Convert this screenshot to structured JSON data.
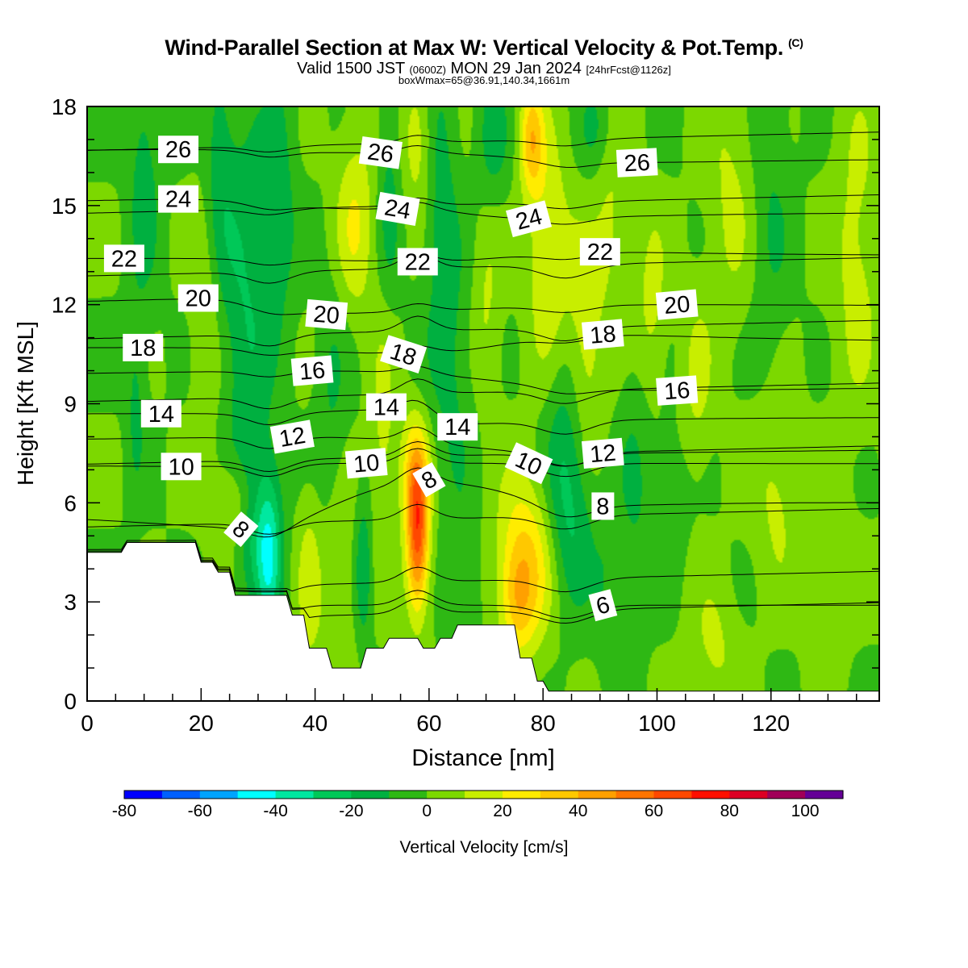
{
  "header": {
    "title": "Wind-Parallel Section at Max W: Vertical Velocity & Pot.Temp.",
    "title_mark": "(C)",
    "valid_prefix": "Valid 1500 JST",
    "valid_utc": "(0600Z)",
    "valid_date": "MON 29 Jan 2024",
    "forecast_info": "[24hrFcst@1126z]",
    "box_info": "boxWmax=65@36.91,140.34,1661m"
  },
  "chart_data": {
    "type": "heatmap",
    "xlabel": "Distance [nm]",
    "ylabel": "Height [Kft MSL]",
    "xlim": [
      0,
      139
    ],
    "ylim": [
      0,
      18
    ],
    "x_ticks": [
      "0",
      "20",
      "40",
      "60",
      "80",
      "100",
      "120"
    ],
    "y_ticks": [
      "0",
      "3",
      "6",
      "9",
      "12",
      "15",
      "18"
    ],
    "colorbar": {
      "label": "Vertical Velocity [cm/s]",
      "ticks": [
        "-80",
        "-60",
        "-40",
        "-20",
        "0",
        "20",
        "40",
        "60",
        "80",
        "100"
      ],
      "levels": [
        -80,
        -70,
        -60,
        -50,
        -40,
        -30,
        -20,
        -10,
        0,
        10,
        20,
        30,
        40,
        50,
        60,
        70,
        80,
        90,
        100
      ],
      "colors": [
        "#0000ff",
        "#0060ff",
        "#00a4ff",
        "#00ffff",
        "#00e8a0",
        "#00c858",
        "#00b040",
        "#2eb814",
        "#7cd800",
        "#c8ee00",
        "#ffec00",
        "#ffc800",
        "#ffa000",
        "#ff7400",
        "#ff4800",
        "#ff1000",
        "#dc0024",
        "#a00058",
        "#640096"
      ]
    },
    "vertical_velocity_cm_s": {
      "background": 0,
      "max_updraft": 65,
      "max_updraft_location": [
        58,
        5
      ],
      "features": [
        {
          "x": 58,
          "z": 5,
          "sx": 1.4,
          "sz": 1.6,
          "w": 63
        },
        {
          "x": 57.5,
          "z": 7,
          "sx": 1.8,
          "sz": 1.2,
          "w": 25
        },
        {
          "x": 77,
          "z": 4.2,
          "sx": 3.5,
          "sz": 1.8,
          "w": 32
        },
        {
          "x": 75.5,
          "z": 3.0,
          "sx": 2.0,
          "sz": 1.1,
          "w": 20
        },
        {
          "x": 26,
          "z": 6.0,
          "sx": 3.0,
          "sz": 0.9,
          "w": 18
        },
        {
          "x": 39,
          "z": 3.5,
          "sx": 1.5,
          "sz": 2.0,
          "w": 15
        },
        {
          "x": 44,
          "z": 3.5,
          "sx": 2.0,
          "sz": 2.5,
          "w": 12
        },
        {
          "x": 32,
          "z": 4.5,
          "sx": 1.6,
          "sz": 1.8,
          "w": -38
        },
        {
          "x": 29,
          "z": 5.5,
          "sx": 2.0,
          "sz": 1.5,
          "w": -18
        },
        {
          "x": 48.5,
          "z": 4.0,
          "sx": 1.0,
          "sz": 1.5,
          "w": -20
        },
        {
          "x": 85,
          "z": 5.5,
          "sx": 3.0,
          "sz": 2.0,
          "w": -18
        },
        {
          "x": 91,
          "z": 3.5,
          "sx": 1.5,
          "sz": 1.5,
          "w": -8
        },
        {
          "x": 84,
          "z": 8.5,
          "sx": 2.5,
          "sz": 2.5,
          "w": -16
        },
        {
          "x": 102,
          "z": 6.5,
          "sx": 2.5,
          "sz": 1.5,
          "w": -8
        },
        {
          "x": 64,
          "z": 10,
          "sx": 3.0,
          "sz": 3.0,
          "w": -12
        },
        {
          "x": 52,
          "z": 8,
          "sx": 1.6,
          "sz": 2.5,
          "w": 14
        },
        {
          "x": 47,
          "z": 14.5,
          "sx": 2.5,
          "sz": 2.0,
          "w": 20
        },
        {
          "x": 58,
          "z": 17,
          "sx": 2.0,
          "sz": 1.5,
          "w": 17
        },
        {
          "x": 78,
          "z": 17,
          "sx": 1.5,
          "sz": 1.2,
          "w": 35
        },
        {
          "x": 81,
          "z": 13.5,
          "sx": 2.5,
          "sz": 2.5,
          "w": 22
        },
        {
          "x": 87,
          "z": 10.5,
          "sx": 2.5,
          "sz": 2.5,
          "w": 20
        },
        {
          "x": 99,
          "z": 12,
          "sx": 2.0,
          "sz": 2.0,
          "w": 14
        },
        {
          "x": 21,
          "z": 12,
          "sx": 2.0,
          "sz": 3.0,
          "w": 12
        },
        {
          "x": 70,
          "z": 12,
          "sx": 2.0,
          "sz": 2.5,
          "w": 12
        },
        {
          "x": 92,
          "z": 14.5,
          "sx": 2.0,
          "sz": 2.0,
          "w": 12
        },
        {
          "x": 121,
          "z": 6.5,
          "sx": 3.0,
          "sz": 2.0,
          "w": 14
        },
        {
          "x": 135,
          "z": 13.5,
          "sx": 3.0,
          "sz": 3.5,
          "w": 14
        },
        {
          "x": 107,
          "z": 9.5,
          "sx": 2.0,
          "sz": 2.0,
          "w": 12
        },
        {
          "x": 113,
          "z": 15.5,
          "sx": 3.0,
          "sz": 3.0,
          "w": 12
        },
        {
          "x": 130,
          "z": 3.5,
          "sx": 2.5,
          "sz": 2.0,
          "w": 12
        },
        {
          "x": 110,
          "z": 1.5,
          "sx": 3.0,
          "sz": 1.5,
          "w": 12
        },
        {
          "x": 23,
          "z": 16,
          "sx": 2.0,
          "sz": 3.0,
          "w": -16
        },
        {
          "x": 10,
          "z": 16,
          "sx": 2.0,
          "sz": 3.0,
          "w": -15
        },
        {
          "x": 8.5,
          "z": 9,
          "sx": 1.2,
          "sz": 2.0,
          "w": -12
        },
        {
          "x": 28,
          "z": 12,
          "sx": 3.0,
          "sz": 4.0,
          "w": -20
        },
        {
          "x": 34,
          "z": 15,
          "sx": 2.0,
          "sz": 3.0,
          "w": -14
        },
        {
          "x": 43,
          "z": 9,
          "sx": 2.0,
          "sz": 3.0,
          "w": -11
        },
        {
          "x": 53,
          "z": 15.5,
          "sx": 1.5,
          "sz": 2.5,
          "w": -14
        },
        {
          "x": 62,
          "z": 15.5,
          "sx": 2.0,
          "sz": 3.0,
          "w": -14
        },
        {
          "x": 71,
          "z": 17,
          "sx": 2.0,
          "sz": 1.5,
          "w": -16
        },
        {
          "x": 89,
          "z": 17.3,
          "sx": 2.0,
          "sz": 1.0,
          "w": -11
        },
        {
          "x": 66,
          "z": 3.5,
          "sx": 2.0,
          "sz": 1.5,
          "w": -12
        },
        {
          "x": 120,
          "z": 15,
          "sx": 2.5,
          "sz": 4.0,
          "w": -10
        },
        {
          "x": 96,
          "z": 6.5,
          "sx": 2.0,
          "sz": 3.0,
          "w": -10
        }
      ]
    },
    "potential_temperature": {
      "contour_interval": 1,
      "labels": [
        {
          "text": "26",
          "x": 16,
          "z": 16.7,
          "rot": 0
        },
        {
          "text": "26",
          "x": 51.5,
          "z": 16.6,
          "rot": 8
        },
        {
          "text": "26",
          "x": 96.5,
          "z": 16.3,
          "rot": -3
        },
        {
          "text": "24",
          "x": 16,
          "z": 15.2,
          "rot": 0
        },
        {
          "text": "24",
          "x": 54.5,
          "z": 14.9,
          "rot": 10
        },
        {
          "text": "24",
          "x": 77.5,
          "z": 14.6,
          "rot": -15
        },
        {
          "text": "22",
          "x": 6.5,
          "z": 13.4,
          "rot": 0
        },
        {
          "text": "22",
          "x": 58,
          "z": 13.3,
          "rot": 0
        },
        {
          "text": "22",
          "x": 90,
          "z": 13.6,
          "rot": 0
        },
        {
          "text": "20",
          "x": 19.5,
          "z": 12.2,
          "rot": 0
        },
        {
          "text": "20",
          "x": 42,
          "z": 11.7,
          "rot": 5
        },
        {
          "text": "20",
          "x": 103.5,
          "z": 12.0,
          "rot": -5
        },
        {
          "text": "18",
          "x": 9.8,
          "z": 10.7,
          "rot": 0
        },
        {
          "text": "18",
          "x": 55.5,
          "z": 10.5,
          "rot": 18
        },
        {
          "text": "18",
          "x": 90.5,
          "z": 11.1,
          "rot": -5
        },
        {
          "text": "16",
          "x": 39.5,
          "z": 10.0,
          "rot": -5
        },
        {
          "text": "16",
          "x": 103.5,
          "z": 9.4,
          "rot": -4
        },
        {
          "text": "14",
          "x": 13,
          "z": 8.7,
          "rot": 0
        },
        {
          "text": "14",
          "x": 52.5,
          "z": 8.9,
          "rot": 0
        },
        {
          "text": "14",
          "x": 65,
          "z": 8.3,
          "rot": 0
        },
        {
          "text": "12",
          "x": 36,
          "z": 8.0,
          "rot": -10
        },
        {
          "text": "12",
          "x": 90.5,
          "z": 7.5,
          "rot": -5
        },
        {
          "text": "10",
          "x": 16.5,
          "z": 7.1,
          "rot": 0
        },
        {
          "text": "10",
          "x": 49,
          "z": 7.2,
          "rot": -5
        },
        {
          "text": "10",
          "x": 77.5,
          "z": 7.2,
          "rot": 25
        },
        {
          "text": "8",
          "x": 60,
          "z": 6.7,
          "rot": -30
        },
        {
          "text": "8",
          "x": 90.5,
          "z": 5.9,
          "rot": 0
        },
        {
          "text": "8",
          "x": 27,
          "z": 5.2,
          "rot": 40
        },
        {
          "text": "6",
          "x": 90.5,
          "z": 2.9,
          "rot": -15
        }
      ]
    },
    "terrain_kft": {
      "x": [
        0,
        6,
        7,
        19,
        20,
        22,
        23,
        25,
        26,
        35,
        36,
        38,
        39,
        42,
        43,
        48,
        49,
        52,
        53,
        58,
        59,
        61,
        62,
        64,
        65,
        75,
        76,
        78,
        79,
        80,
        81,
        139
      ],
      "z": [
        4.5,
        4.5,
        4.8,
        4.8,
        4.2,
        4.2,
        3.9,
        3.9,
        3.2,
        3.2,
        2.6,
        2.6,
        1.6,
        1.6,
        1.0,
        1.0,
        1.6,
        1.6,
        1.9,
        1.9,
        1.6,
        1.6,
        1.9,
        1.9,
        2.3,
        2.3,
        1.3,
        1.3,
        0.6,
        0.6,
        0.3,
        0.3
      ]
    }
  }
}
